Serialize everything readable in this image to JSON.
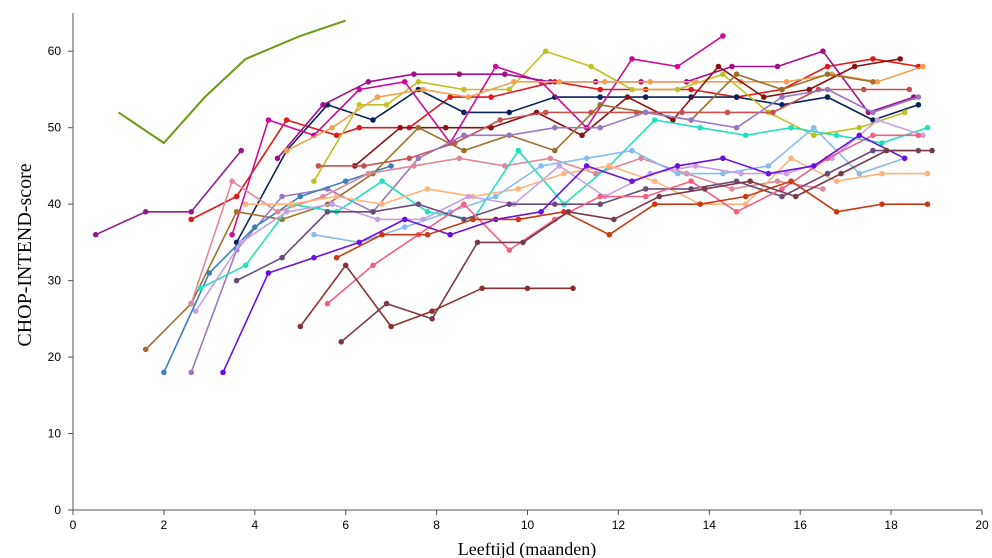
{
  "chart_data": {
    "type": "line",
    "title": "",
    "xlabel": "Leeftijd (maanden)",
    "ylabel": "CHOP-INTEND-score",
    "xlim": [
      0,
      20
    ],
    "ylim": [
      0,
      65
    ],
    "xticks": [
      "0",
      "2",
      "4",
      "6",
      "8",
      "10",
      "12",
      "14",
      "16",
      "18",
      "20"
    ],
    "yticks": [
      "0",
      "10",
      "20",
      "30",
      "40",
      "50",
      "60"
    ],
    "grid": false,
    "legend": "none",
    "series": [
      {
        "color": "#6b9b10",
        "x": [
          1.0,
          2.0,
          2.9,
          3.8,
          5.0,
          6.0
        ],
        "y": [
          52,
          48,
          54,
          59,
          62,
          64
        ]
      },
      {
        "color": "#8e1c8e",
        "x": [
          0.5,
          1.6,
          2.6,
          3.7
        ],
        "y": [
          36,
          39,
          39,
          47
        ]
      },
      {
        "color": "#e0191b",
        "x": [
          2.6,
          3.6,
          4.7,
          5.8,
          6.3,
          7.4,
          8.3,
          9.2,
          10.6,
          11.6,
          12.6,
          13.6,
          14.6,
          15.6,
          16.6,
          17.6,
          18.6
        ],
        "y": [
          38,
          41,
          51,
          49,
          50,
          50,
          54,
          54,
          56,
          55,
          55,
          55,
          54,
          55,
          58,
          59,
          58
        ]
      },
      {
        "color": "#0a2459",
        "x": [
          3.6,
          4.7,
          5.6,
          6.6,
          7.6,
          8.6,
          9.6,
          10.6,
          11.6,
          12.6,
          13.6,
          14.6,
          15.6,
          16.6,
          17.6,
          18.6
        ],
        "y": [
          35,
          47,
          53,
          51,
          55,
          52,
          52,
          54,
          54,
          54,
          54,
          54,
          53,
          54,
          51,
          53
        ]
      },
      {
        "color": "#c0c020",
        "x": [
          5.3,
          6.3,
          6.9,
          7.6,
          8.6,
          9.6,
          10.4,
          11.4,
          12.3,
          13.3,
          14.3,
          15.3,
          16.3,
          17.3,
          18.3
        ],
        "y": [
          43,
          53,
          53,
          56,
          55,
          55,
          60,
          58,
          55,
          55,
          57,
          52,
          49,
          50,
          52
        ]
      },
      {
        "color": "#cc0a99",
        "x": [
          3.5,
          4.3,
          5.3,
          6.3,
          7.3,
          8.3,
          9.3,
          10.3,
          11.3,
          12.3,
          13.3,
          14.3
        ],
        "y": [
          36,
          51,
          49,
          55,
          56,
          48,
          58,
          56,
          50,
          59,
          58,
          62
        ]
      },
      {
        "color": "#a10f8a",
        "x": [
          4.5,
          5.5,
          6.5,
          7.5,
          8.5,
          9.5,
          10.5,
          11.5,
          12.5,
          13.5,
          14.5,
          15.5,
          16.5,
          17.5,
          18.5
        ],
        "y": [
          46,
          53,
          56,
          57,
          57,
          57,
          56,
          56,
          56,
          56,
          58,
          58,
          60,
          52,
          54
        ]
      },
      {
        "color": "#f0a050",
        "x": [
          4.7,
          5.7,
          6.7,
          7.7,
          8.7,
          9.7,
          10.7,
          11.7,
          12.7,
          13.7,
          14.7,
          15.7,
          16.7,
          17.7,
          18.7
        ],
        "y": [
          47,
          50,
          54,
          55,
          54,
          56,
          56,
          56,
          56,
          56,
          56,
          56,
          57,
          56,
          58
        ]
      },
      {
        "color": "#8b1010",
        "x": [
          6.2,
          7.2,
          8.2,
          9.2,
          10.2,
          11.2,
          12.2,
          13.2,
          14.2,
          15.2,
          16.2,
          17.2,
          18.2
        ],
        "y": [
          45,
          50,
          50,
          50,
          52,
          49,
          54,
          51,
          58,
          54,
          55,
          58,
          59
        ]
      },
      {
        "color": "#c85050",
        "x": [
          5.4,
          6.4,
          7.4,
          8.4,
          9.4,
          10.4,
          11.4,
          12.4,
          13.4,
          14.4,
          15.4,
          16.4,
          17.4,
          18.4
        ],
        "y": [
          45,
          45,
          46,
          48,
          51,
          52,
          52,
          52,
          52,
          52,
          52,
          55,
          55,
          55
        ]
      },
      {
        "color": "#a0702a",
        "x": [
          1.6,
          2.6,
          3.6,
          4.6,
          5.6,
          6.6,
          7.6,
          8.6,
          9.6,
          10.6,
          11.6,
          12.6,
          13.6,
          14.6,
          15.6,
          16.6,
          17.6
        ],
        "y": [
          21,
          27,
          39,
          38,
          40,
          44,
          50,
          47,
          49,
          47,
          53,
          52,
          51,
          57,
          55,
          57,
          56
        ]
      },
      {
        "color": "#9a78c0",
        "x": [
          2.6,
          3.6,
          4.6,
          5.6,
          6.6,
          7.6,
          8.6,
          9.6,
          10.6,
          11.6,
          12.6,
          13.6,
          14.6,
          15.6,
          16.6,
          17.6,
          18.6
        ],
        "y": [
          18,
          34,
          41,
          42,
          39,
          46,
          49,
          49,
          50,
          50,
          52,
          51,
          50,
          54,
          55,
          52,
          54
        ]
      },
      {
        "color": "#3a80c0",
        "x": [
          2.0,
          3.0,
          4.0,
          5.0,
          6.0,
          7.0
        ],
        "y": [
          18,
          31,
          37,
          41,
          43,
          45
        ]
      },
      {
        "color": "#e08898",
        "x": [
          2.6,
          3.5,
          4.5,
          5.5,
          6.5,
          7.5,
          8.5,
          9.5,
          10.5,
          11.5,
          12.5,
          13.5,
          14.5,
          15.5,
          16.5
        ],
        "y": [
          27,
          43,
          39,
          41,
          44,
          45,
          46,
          45,
          46,
          44,
          46,
          44,
          42,
          43,
          42
        ]
      },
      {
        "color": "#20e0c0",
        "x": [
          2.8,
          3.8,
          4.8,
          5.8,
          6.8,
          7.8,
          8.8,
          9.8,
          10.8,
          11.8,
          12.8,
          13.8,
          14.8,
          15.8,
          16.8,
          17.8,
          18.8
        ],
        "y": [
          29,
          32,
          40,
          39,
          43,
          39,
          38,
          47,
          40,
          45,
          51,
          50,
          49,
          50,
          49,
          48,
          50
        ]
      },
      {
        "color": "#ffb37a",
        "x": [
          3.8,
          4.8,
          5.8,
          6.8,
          7.8,
          8.8,
          9.8,
          10.8,
          11.8,
          12.8,
          13.8,
          14.8,
          15.8,
          16.8,
          17.8,
          18.8
        ],
        "y": [
          40,
          40,
          41,
          40,
          42,
          41,
          42,
          44,
          45,
          43,
          40,
          40,
          46,
          43,
          44,
          44
        ]
      },
      {
        "color": "#88bbee",
        "x": [
          5.3,
          6.3,
          7.3,
          8.3,
          9.3,
          10.3,
          11.3,
          12.3,
          13.3,
          14.3,
          15.3,
          16.3,
          17.3,
          18.3
        ],
        "y": [
          36,
          35,
          37,
          39,
          41,
          45,
          46,
          47,
          44,
          44,
          45,
          50,
          44,
          46
        ]
      },
      {
        "color": "#c8a0e8",
        "x": [
          2.7,
          3.7,
          4.7,
          5.7,
          6.7,
          7.7,
          8.7,
          9.7,
          10.7,
          11.7,
          12.7,
          13.7,
          14.7,
          15.7,
          16.7,
          17.7,
          18.7
        ],
        "y": [
          26,
          35,
          39,
          40,
          38,
          38,
          41,
          40,
          45,
          41,
          44,
          45,
          44,
          44,
          46,
          51,
          49
        ]
      },
      {
        "color": "#6a4a7a",
        "x": [
          3.6,
          4.6,
          5.6,
          6.6,
          7.6,
          8.6,
          9.6,
          10.6,
          11.6,
          12.6,
          13.6,
          14.6,
          15.6,
          16.6,
          17.6,
          18.6
        ],
        "y": [
          30,
          33,
          39,
          39,
          40,
          38,
          40,
          40,
          40,
          42,
          42,
          43,
          41,
          44,
          47,
          47
        ]
      },
      {
        "color": "#f06080",
        "x": [
          5.6,
          6.6,
          7.6,
          8.6,
          9.6,
          10.6,
          11.6,
          12.6,
          13.6,
          14.6,
          15.6,
          16.6,
          17.6,
          18.6
        ],
        "y": [
          27,
          32,
          36,
          40,
          34,
          38,
          41,
          41,
          43,
          39,
          42,
          46,
          49,
          49
        ]
      },
      {
        "color": "#6a10e0",
        "x": [
          3.3,
          4.3,
          5.3,
          6.3,
          7.3,
          8.3,
          9.3,
          10.3,
          11.3,
          12.3,
          13.3,
          14.3,
          15.3,
          16.3,
          17.3,
          18.3
        ],
        "y": [
          18,
          31,
          33,
          35,
          38,
          36,
          38,
          39,
          45,
          43,
          45,
          46,
          44,
          45,
          49,
          46
        ]
      },
      {
        "color": "#c83a10",
        "x": [
          5.8,
          6.8,
          7.8,
          8.8,
          9.8,
          10.8,
          11.8,
          12.8,
          13.8,
          14.8,
          15.8,
          16.8,
          17.8,
          18.8
        ],
        "y": [
          33,
          36,
          36,
          38,
          38,
          39,
          36,
          40,
          40,
          41,
          43,
          39,
          40,
          40
        ]
      },
      {
        "color": "#7a3a4a",
        "x": [
          5.9,
          6.9,
          7.9,
          8.9,
          9.9,
          10.9,
          11.9,
          12.9,
          13.9,
          14.9,
          15.9,
          16.9,
          17.9,
          18.9
        ],
        "y": [
          22,
          27,
          25,
          35,
          35,
          39,
          38,
          41,
          42,
          43,
          41,
          44,
          47,
          47
        ]
      },
      {
        "color": "#8a3030",
        "x": [
          5.0,
          6.0,
          7.0,
          7.9,
          9.0,
          10.0,
          11.0
        ],
        "y": [
          24,
          32,
          24,
          26,
          29,
          29,
          29
        ]
      }
    ]
  }
}
